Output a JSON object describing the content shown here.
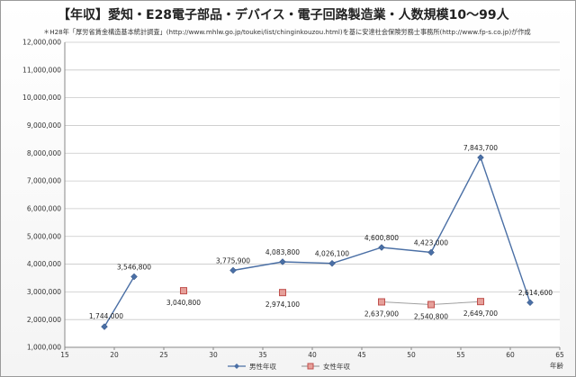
{
  "title": "【年収】愛知・E28電子部品・デバイス・電子回路製造業・人数規模10～99人",
  "subtitle": "＊H28年「厚労省賃金構造基本統計調査」(http://www.mhlw.go.jp/toukei/list/chinginkouzou.html)を基に安達社会保険労務士事務所(http://www.fp-s.co.jp)が作成",
  "chart_data": {
    "type": "line",
    "xlabel": "年齢",
    "ylabel": "",
    "xlim": [
      15,
      65
    ],
    "ylim": [
      1000000,
      12000000
    ],
    "x_ticks": [
      15,
      20,
      25,
      30,
      35,
      40,
      45,
      50,
      55,
      60,
      65
    ],
    "y_ticks": [
      1000000,
      2000000,
      3000000,
      4000000,
      5000000,
      6000000,
      7000000,
      8000000,
      9000000,
      10000000,
      11000000,
      12000000
    ],
    "y_tick_labels": [
      "1,000,000",
      "2,000,000",
      "3,000,000",
      "4,000,000",
      "5,000,000",
      "6,000,000",
      "7,000,000",
      "8,000,000",
      "9,000,000",
      "10,000,000",
      "11,000,000",
      "12,000,000"
    ],
    "grid": "horizontal",
    "legend_position": "bottom",
    "series": [
      {
        "name": "男性年収",
        "color": "#4a6fa5",
        "marker": "diamond",
        "segments": [
          [
            {
              "x": 19,
              "y": 1744000,
              "label": "1,744,000"
            },
            {
              "x": 22,
              "y": 3546800,
              "label": "3,546,800"
            }
          ],
          [
            {
              "x": 32,
              "y": 3775900,
              "label": "3,775,900"
            },
            {
              "x": 37,
              "y": 4083800,
              "label": "4,083,800"
            },
            {
              "x": 42,
              "y": 4026100,
              "label": "4,026,100"
            },
            {
              "x": 47,
              "y": 4600800,
              "label": "4,600,800"
            },
            {
              "x": 52,
              "y": 4423000,
              "label": "4,423,000"
            },
            {
              "x": 57,
              "y": 7843700,
              "label": "7,843,700"
            },
            {
              "x": 62,
              "y": 2614600,
              "label": "2,614,600"
            }
          ]
        ]
      },
      {
        "name": "女性年収",
        "color": "#c0504d",
        "marker": "square",
        "segments": [
          [
            {
              "x": 27,
              "y": 3040800,
              "label": "3,040,800"
            }
          ],
          [
            {
              "x": 37,
              "y": 2974100,
              "label": "2,974,100"
            }
          ],
          [
            {
              "x": 47,
              "y": 2637900,
              "label": "2,637,900"
            },
            {
              "x": 52,
              "y": 2540800,
              "label": "2,540,800"
            },
            {
              "x": 57,
              "y": 2649700,
              "label": "2,649,700"
            }
          ]
        ]
      }
    ]
  }
}
